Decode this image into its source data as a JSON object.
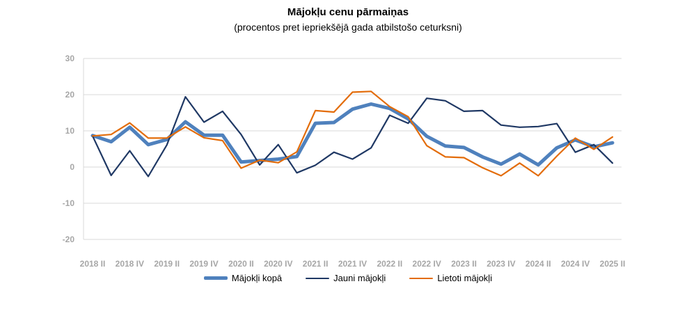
{
  "chart_data": {
    "type": "line",
    "title": "Mājokļu cenu pārmaiņas",
    "subtitle": "(procentos pret iepriekšējā gada atbilstošo ceturksni)",
    "ylim": [
      -20,
      30
    ],
    "yticks": [
      "30",
      "20",
      "10",
      "0",
      "-10",
      "-20"
    ],
    "ytick_values": [
      30,
      20,
      10,
      0,
      -10,
      -20
    ],
    "x_labels": [
      "2018 II",
      "2018 IV",
      "2019 II",
      "2019 IV",
      "2020 II",
      "2020 IV",
      "2021 II",
      "2021 IV",
      "2022 II",
      "2022 IV",
      "2023 II",
      "2023 IV",
      "2024 II",
      "2024 IV",
      "2025 II"
    ],
    "grid": true,
    "legend_position": "bottom",
    "series": [
      {
        "name": "Mājokļi kopā",
        "color": "#4f81bd",
        "values": [
          8.7,
          7.0,
          11.0,
          6.2,
          7.6,
          12.5,
          8.8,
          8.8,
          1.4,
          1.8,
          2.2,
          2.9,
          12.1,
          12.3,
          16.0,
          17.4,
          16.2,
          13.3,
          8.5,
          5.8,
          5.4,
          2.8,
          0.8,
          3.6,
          0.6,
          5.3,
          7.5,
          5.6,
          6.7
        ]
      },
      {
        "name": "Jauni mājokļi",
        "color": "#1f3864",
        "values": [
          8.6,
          -2.3,
          4.5,
          -2.6,
          6.1,
          19.4,
          12.4,
          15.4,
          9.0,
          0.6,
          6.2,
          -1.6,
          0.5,
          4.1,
          2.2,
          5.3,
          14.3,
          12.1,
          19.0,
          18.3,
          15.4,
          15.6,
          11.6,
          11.0,
          11.2,
          12.0,
          4.1,
          6.2,
          1.1
        ]
      },
      {
        "name": "Lietoti mājokļi",
        "color": "#e36c09",
        "values": [
          8.6,
          9.0,
          12.2,
          8.0,
          8.0,
          11.1,
          8.1,
          7.3,
          -0.3,
          1.9,
          1.2,
          4.2,
          15.6,
          15.2,
          20.7,
          20.9,
          16.7,
          13.9,
          5.9,
          2.8,
          2.6,
          -0.2,
          -2.4,
          1.1,
          -2.4,
          3.0,
          8.0,
          4.9,
          8.3
        ]
      }
    ]
  }
}
